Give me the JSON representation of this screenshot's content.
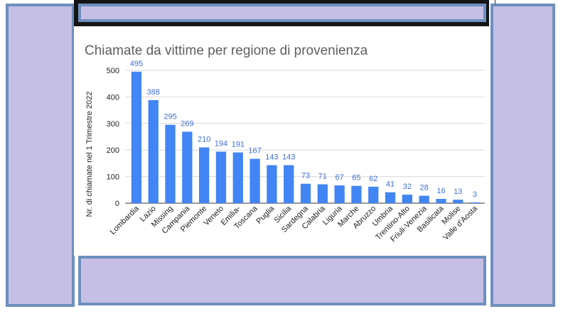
{
  "colors": {
    "panel": "#c5bfe6",
    "panel_border": "#6f8fbd",
    "bar": "#4285f4",
    "data_label": "#3f6fd8"
  },
  "chart_data": {
    "type": "bar",
    "title": "Chiamate da vittime per regione di provenienza",
    "xlabel": "",
    "ylabel": "Nr. di chiamate nel 1 Trimestre 2022",
    "ylim": [
      0,
      500
    ],
    "yticks": [
      0,
      100,
      200,
      300,
      400,
      500
    ],
    "grid": true,
    "categories": [
      "Lombardia",
      "Lazio",
      "Missing",
      "Campania",
      "Piemonte",
      "Veneto",
      "Emilia-",
      "Toscana",
      "Puglia",
      "Sicilia",
      "Sardegna",
      "Calabria",
      "Liguria",
      "Marche",
      "Abruzzo",
      "Umbria",
      "Trentino-Alto",
      "Friuli-Venezia",
      "Basilicata",
      "Molise",
      "Valle d'Aosta"
    ],
    "values": [
      495,
      388,
      295,
      269,
      210,
      194,
      191,
      167,
      143,
      143,
      73,
      71,
      67,
      65,
      62,
      41,
      32,
      28,
      16,
      13,
      3
    ]
  }
}
